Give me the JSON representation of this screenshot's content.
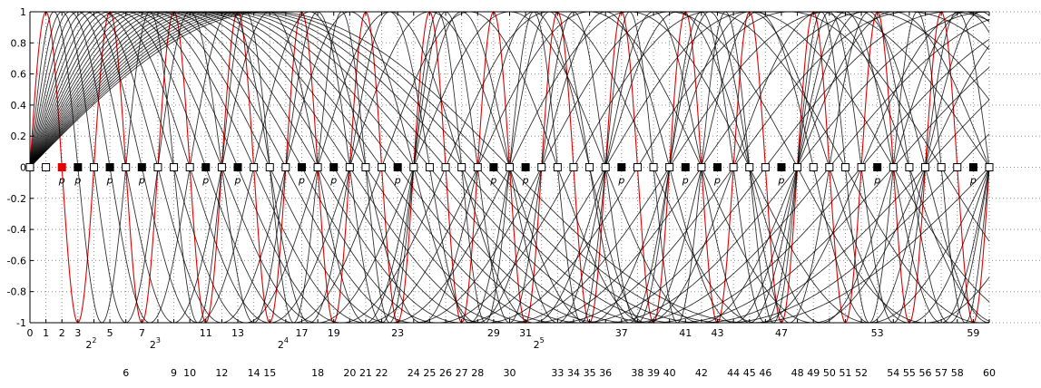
{
  "chart_data": {
    "type": "line",
    "title": "",
    "xlabel": "",
    "ylabel": "",
    "xlim": [
      0,
      60
    ],
    "ylim": [
      -1,
      1
    ],
    "grid": true,
    "y_ticks": [
      "1",
      "0.8",
      "0.6",
      "0.4",
      "0.2",
      "0",
      "-0.2",
      "-0.4",
      "-0.6",
      "-0.8",
      "-1"
    ],
    "y_tick_values": [
      1,
      0.8,
      0.6,
      0.4,
      0.2,
      0,
      -0.2,
      -0.4,
      -0.6,
      -0.8,
      -1
    ],
    "x_labels_row1": [
      {
        "x": 0,
        "t": "0"
      },
      {
        "x": 1,
        "t": "1"
      },
      {
        "x": 2,
        "t": "2"
      },
      {
        "x": 3,
        "t": "3"
      },
      {
        "x": 5,
        "t": "5"
      },
      {
        "x": 7,
        "t": "7"
      },
      {
        "x": 11,
        "t": "11"
      },
      {
        "x": 13,
        "t": "13"
      },
      {
        "x": 17,
        "t": "17"
      },
      {
        "x": 19,
        "t": "19"
      },
      {
        "x": 23,
        "t": "23"
      },
      {
        "x": 29,
        "t": "29"
      },
      {
        "x": 31,
        "t": "31"
      },
      {
        "x": 37,
        "t": "37"
      },
      {
        "x": 41,
        "t": "41"
      },
      {
        "x": 43,
        "t": "43"
      },
      {
        "x": 47,
        "t": "47"
      },
      {
        "x": 53,
        "t": "53"
      },
      {
        "x": 59,
        "t": "59"
      }
    ],
    "power_labels": [
      {
        "x": 4,
        "base": "2",
        "exp": "2"
      },
      {
        "x": 8,
        "base": "2",
        "exp": "3"
      },
      {
        "x": 16,
        "base": "2",
        "exp": "4"
      },
      {
        "x": 32,
        "base": "2",
        "exp": "5"
      }
    ],
    "x_labels_row3": [
      "6",
      "9",
      "10",
      "12",
      "14",
      "15",
      "18",
      "20",
      "21",
      "22",
      "24",
      "25",
      "26",
      "27",
      "28",
      "30",
      "33",
      "34",
      "35",
      "36",
      "38",
      "39",
      "40",
      "42",
      "44",
      "45",
      "46",
      "48",
      "49",
      "50",
      "51",
      "52",
      "54",
      "55",
      "56",
      "57",
      "58",
      "60"
    ],
    "p_marker_label": "p",
    "primes": [
      2,
      3,
      5,
      7,
      11,
      13,
      17,
      19,
      23,
      29,
      31,
      37,
      41,
      43,
      47,
      53,
      59
    ],
    "highlighted_prime": 2,
    "marker_x": [
      0,
      1,
      2,
      3,
      4,
      5,
      6,
      7,
      8,
      9,
      10,
      11,
      12,
      13,
      14,
      15,
      16,
      17,
      18,
      19,
      20,
      21,
      22,
      23,
      24,
      25,
      26,
      27,
      28,
      29,
      30,
      31,
      32,
      33,
      34,
      35,
      36,
      37,
      38,
      39,
      40,
      41,
      42,
      43,
      44,
      45,
      46,
      47,
      48,
      49,
      50,
      51,
      52,
      53,
      54,
      55,
      56,
      57,
      58,
      59,
      60
    ],
    "series": [
      {
        "divisor": 2,
        "color": "#e00000",
        "function": "sin(pi*x/2)"
      },
      {
        "divisor": 3,
        "color": "#000000",
        "function": "sin(pi*x/3)"
      },
      {
        "divisor": 4,
        "color": "#000000",
        "function": "sin(pi*x/4)"
      },
      {
        "divisor": 5,
        "color": "#000000",
        "function": "sin(pi*x/5)"
      },
      {
        "divisor": 6,
        "color": "#000000",
        "function": "sin(pi*x/6)"
      },
      {
        "divisor": 7,
        "color": "#000000",
        "function": "sin(pi*x/7)"
      },
      {
        "divisor": 8,
        "color": "#000000",
        "function": "sin(pi*x/8)"
      },
      {
        "divisor": 9,
        "color": "#000000",
        "function": "sin(pi*x/9)"
      },
      {
        "divisor": 10,
        "color": "#000000",
        "function": "sin(pi*x/10)"
      },
      {
        "divisor": 11,
        "color": "#000000",
        "function": "sin(pi*x/11)"
      },
      {
        "divisor": 12,
        "color": "#000000",
        "function": "sin(pi*x/12)"
      },
      {
        "divisor": 13,
        "color": "#000000",
        "function": "sin(pi*x/13)"
      },
      {
        "divisor": 14,
        "color": "#000000",
        "function": "sin(pi*x/14)"
      },
      {
        "divisor": 15,
        "color": "#000000",
        "function": "sin(pi*x/15)"
      },
      {
        "divisor": 16,
        "color": "#000000",
        "function": "sin(pi*x/16)"
      },
      {
        "divisor": 17,
        "color": "#000000",
        "function": "sin(pi*x/17)"
      },
      {
        "divisor": 18,
        "color": "#000000",
        "function": "sin(pi*x/18)"
      },
      {
        "divisor": 19,
        "color": "#000000",
        "function": "sin(pi*x/19)"
      },
      {
        "divisor": 20,
        "color": "#000000",
        "function": "sin(pi*x/20)"
      },
      {
        "divisor": 21,
        "color": "#000000",
        "function": "sin(pi*x/21)"
      },
      {
        "divisor": 22,
        "color": "#000000",
        "function": "sin(pi*x/22)"
      },
      {
        "divisor": 23,
        "color": "#000000",
        "function": "sin(pi*x/23)"
      },
      {
        "divisor": 24,
        "color": "#000000",
        "function": "sin(pi*x/24)"
      },
      {
        "divisor": 25,
        "color": "#000000",
        "function": "sin(pi*x/25)"
      },
      {
        "divisor": 26,
        "color": "#000000",
        "function": "sin(pi*x/26)"
      },
      {
        "divisor": 27,
        "color": "#000000",
        "function": "sin(pi*x/27)"
      },
      {
        "divisor": 28,
        "color": "#000000",
        "function": "sin(pi*x/28)"
      },
      {
        "divisor": 29,
        "color": "#000000",
        "function": "sin(pi*x/29)"
      },
      {
        "divisor": 30,
        "color": "#000000",
        "function": "sin(pi*x/30)"
      }
    ],
    "colors": {
      "highlight": "#e00000",
      "curve": "#000000",
      "grid": "#909090",
      "marker_fill": "#000000",
      "marker_empty": "#ffffff"
    }
  }
}
